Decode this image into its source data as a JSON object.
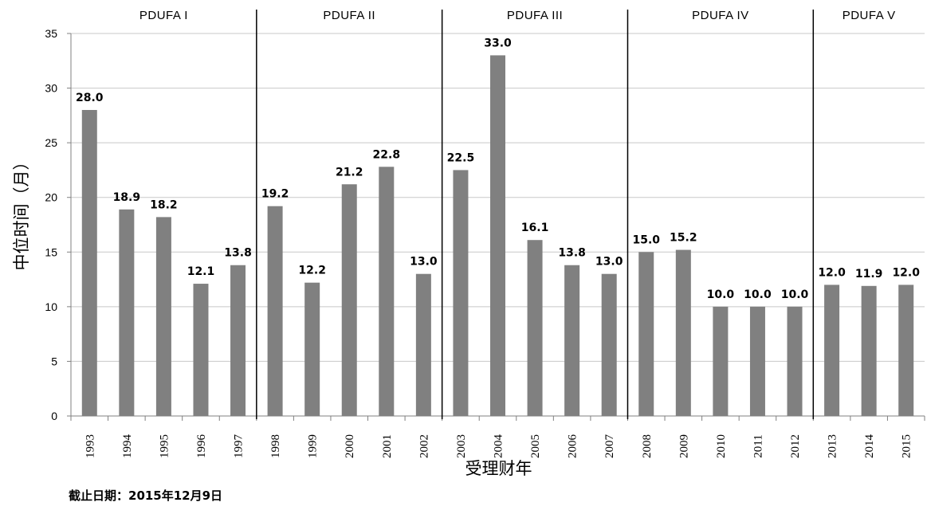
{
  "chart_data": {
    "type": "bar",
    "categories": [
      "1993",
      "1994",
      "1995",
      "1996",
      "1997",
      "1998",
      "1999",
      "2000",
      "2001",
      "2002",
      "2003",
      "2004",
      "2005",
      "2006",
      "2007",
      "2008",
      "2009",
      "2010",
      "2011",
      "2012",
      "2013",
      "2014",
      "2015"
    ],
    "values": [
      28.0,
      18.9,
      18.2,
      12.1,
      13.8,
      19.2,
      12.2,
      21.2,
      22.8,
      13.0,
      22.5,
      33.0,
      16.1,
      13.8,
      13.0,
      15.0,
      15.2,
      10.0,
      10.0,
      10.0,
      12.0,
      11.9,
      12.0
    ],
    "data_labels": [
      "28.0",
      "18.9",
      "18.2",
      "12.1",
      "13.8",
      "19.2",
      "12.2",
      "21.2",
      "22.8",
      "13.0",
      "22.5",
      "33.0",
      "16.1",
      "13.8",
      "13.0",
      "15.0",
      "15.2",
      "10.0",
      "10.0",
      "10.0",
      "12.0",
      "11.9",
      "12.0"
    ],
    "xlabel": "受理财年",
    "ylabel": "中位时间（月）",
    "ylim": [
      0,
      35
    ],
    "yticks": [
      "0",
      "5",
      "10",
      "15",
      "20",
      "25",
      "30",
      "35"
    ],
    "grid": true,
    "bar_color": "#808080",
    "grid_color": "#c8c8c8",
    "divider_color": "#000000",
    "eras": [
      {
        "label": "PDUFA I",
        "start": 0,
        "end": 4
      },
      {
        "label": "PDUFA II",
        "start": 5,
        "end": 9
      },
      {
        "label": "PDUFA III",
        "start": 10,
        "end": 14
      },
      {
        "label": "PDUFA IV",
        "start": 15,
        "end": 19
      },
      {
        "label": "PDUFA V",
        "start": 20,
        "end": 22
      }
    ]
  },
  "footnote": "截止日期：2015年12月9日"
}
